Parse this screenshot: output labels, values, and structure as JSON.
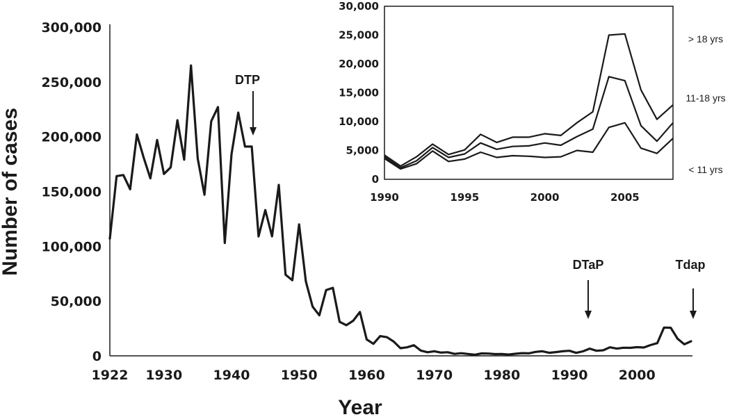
{
  "chart_data": [
    {
      "type": "line",
      "xlabel": "Year",
      "ylabel": "Number of cases",
      "xlim": [
        1922,
        2008
      ],
      "ylim": [
        0,
        300000
      ],
      "x_ticks": [
        1922,
        1930,
        1940,
        1950,
        1960,
        1970,
        1980,
        1990,
        2000
      ],
      "x_tick_labels": [
        "1922",
        "1930",
        "1940",
        "1950",
        "1960",
        "1970",
        "1980",
        "1990",
        "2000"
      ],
      "y_ticks": [
        0,
        50000,
        100000,
        150000,
        200000,
        250000,
        300000
      ],
      "y_tick_labels": [
        "0",
        "50,000",
        "100,000",
        "150,000",
        "200,000",
        "250,000",
        "300,000"
      ],
      "grid": false,
      "series": [
        {
          "x": [
            1922,
            1923,
            1924,
            1925,
            1926,
            1927,
            1928,
            1929,
            1930,
            1931,
            1932,
            1933,
            1934,
            1935,
            1936,
            1937,
            1938,
            1939,
            1940,
            1941,
            1942,
            1943,
            1944,
            1945,
            1946,
            1947,
            1948,
            1949,
            1950,
            1951,
            1952,
            1953,
            1954,
            1955,
            1956,
            1957,
            1958,
            1959,
            1960,
            1961,
            1962,
            1963,
            1964,
            1965,
            1966,
            1967,
            1968,
            1969,
            1970,
            1971,
            1972,
            1973,
            1974,
            1975,
            1976,
            1977,
            1978,
            1979,
            1980,
            1981,
            1982,
            1983,
            1984,
            1985,
            1986,
            1987,
            1988,
            1989,
            1990,
            1991,
            1992,
            1993,
            1994,
            1995,
            1996,
            1997,
            1998,
            1999,
            2000,
            2001,
            2002,
            2003,
            2004,
            2005,
            2006,
            2007,
            2008
          ],
          "values": [
            107000,
            164000,
            165000,
            152000,
            202000,
            181000,
            162000,
            197000,
            166000,
            172000,
            215000,
            179000,
            265000,
            180000,
            147000,
            214000,
            227000,
            103000,
            184000,
            222000,
            191000,
            191000,
            109000,
            133000,
            109000,
            156000,
            74000,
            69000,
            120000,
            68000,
            45000,
            37000,
            60000,
            62000,
            31000,
            28000,
            32000,
            40000,
            15000,
            11000,
            18000,
            17000,
            13000,
            7000,
            7800,
            9700,
            4800,
            3300,
            4200,
            3000,
            3300,
            1800,
            2400,
            1700,
            1000,
            2200,
            2100,
            1600,
            1700,
            1200,
            1900,
            2500,
            2300,
            3600,
            4200,
            2800,
            3400,
            4200,
            4600,
            2700,
            4100,
            6600,
            4600,
            5100,
            7800,
            6600,
            7400,
            7300,
            7900,
            7600,
            9800,
            11600,
            25800,
            25600,
            15600,
            10500,
            13300
          ]
        }
      ],
      "annotations": [
        {
          "text": "DTP",
          "x": 1943
        },
        {
          "text": "DTaP",
          "x": 1992
        },
        {
          "text": "Tdap",
          "x": 2005
        }
      ]
    },
    {
      "type": "line",
      "title": "",
      "xlim": [
        1990,
        2008
      ],
      "ylim": [
        0,
        30000
      ],
      "x_ticks": [
        1990,
        1995,
        2000,
        2005
      ],
      "x_tick_labels": [
        "1990",
        "1995",
        "2000",
        "2005"
      ],
      "y_ticks": [
        0,
        5000,
        10000,
        15000,
        20000,
        25000,
        30000
      ],
      "y_tick_labels": [
        "0",
        "5,000",
        "10,000",
        "15,000",
        "20,000",
        "25,000",
        "30,000"
      ],
      "grid": false,
      "x": [
        1990,
        1991,
        1992,
        1993,
        1994,
        1995,
        1996,
        1997,
        1998,
        1999,
        2000,
        2001,
        2002,
        2003,
        2004,
        2005,
        2006,
        2007,
        2008
      ],
      "series": [
        {
          "name": "> 18 yrs",
          "values": [
            4200,
            2300,
            3900,
            6100,
            4300,
            5100,
            7800,
            6400,
            7300,
            7300,
            7900,
            7600,
            9800,
            11700,
            25000,
            25200,
            15500,
            10400,
            12900
          ]
        },
        {
          "name": "11-18 yrs",
          "values": [
            3900,
            2000,
            3200,
            5500,
            3800,
            4400,
            6300,
            5200,
            5700,
            5800,
            6300,
            5900,
            7400,
            8700,
            17800,
            17100,
            9300,
            6600,
            9800
          ]
        },
        {
          "name": "< 11 yrs",
          "values": [
            3600,
            1800,
            2700,
            4900,
            3100,
            3500,
            4700,
            3800,
            4100,
            4000,
            3800,
            3900,
            5000,
            4700,
            9000,
            9800,
            5400,
            4500,
            7100
          ]
        }
      ]
    }
  ]
}
